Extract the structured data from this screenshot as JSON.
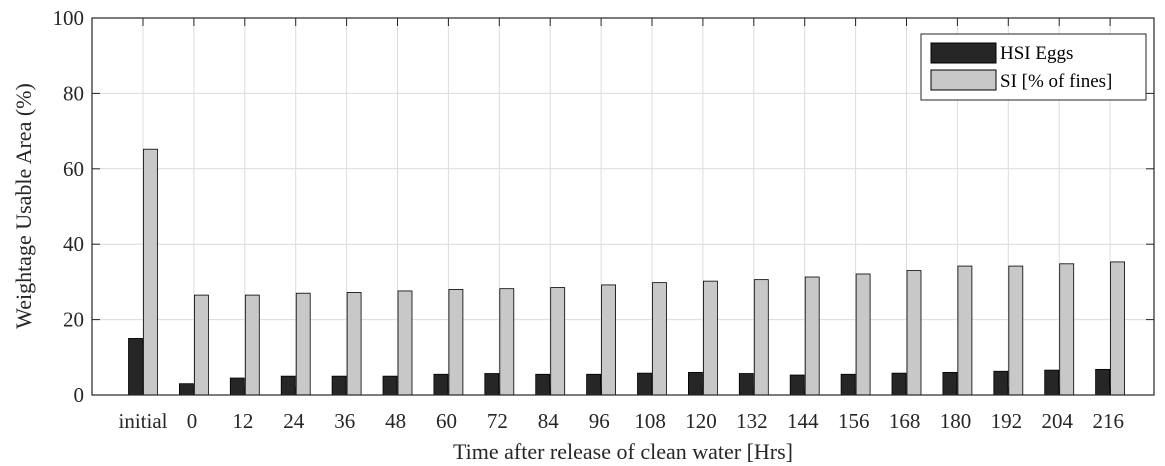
{
  "chart_data": {
    "type": "bar",
    "title": "",
    "xlabel": "Time after release of clean water [Hrs]",
    "ylabel": "Weightage Usable Area (%)",
    "ylim": [
      0,
      100
    ],
    "yticks": [
      0,
      20,
      40,
      60,
      80,
      100
    ],
    "grid": true,
    "legend_position": "top-right",
    "categories": [
      "initial",
      "0",
      "12",
      "24",
      "36",
      "48",
      "60",
      "72",
      "84",
      "96",
      "108",
      "120",
      "132",
      "144",
      "156",
      "168",
      "180",
      "192",
      "204",
      "216"
    ],
    "series": [
      {
        "name": "HSI Eggs",
        "color": "#262626",
        "values": [
          15,
          3,
          4.5,
          5,
          5,
          5,
          5.5,
          5.7,
          5.5,
          5.5,
          5.8,
          6,
          5.7,
          5.3,
          5.5,
          5.8,
          6,
          6.3,
          6.6,
          6.8
        ]
      },
      {
        "name": "SI [% of fines]",
        "color": "#c8c8c8",
        "values": [
          65.2,
          26.5,
          26.5,
          27,
          27.2,
          27.6,
          28,
          28.2,
          28.5,
          29.2,
          29.8,
          30.2,
          30.6,
          31.3,
          32.1,
          33,
          34.2,
          34.2,
          34.8,
          35.3
        ]
      }
    ]
  }
}
